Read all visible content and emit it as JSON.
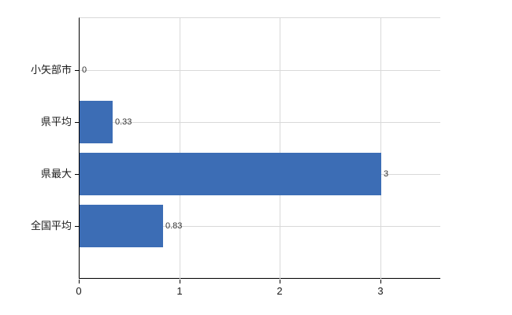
{
  "chart_data": {
    "type": "bar",
    "orientation": "horizontal",
    "title": "",
    "xlabel": "",
    "ylabel": "",
    "categories": [
      "小矢部市",
      "県平均",
      "県最大",
      "全国平均"
    ],
    "values": [
      0,
      0.33,
      3,
      0.83
    ],
    "value_labels": [
      "0",
      "0.33",
      "3",
      "0.83"
    ],
    "xticks": [
      0,
      1,
      2,
      3
    ],
    "xtick_labels": [
      "0",
      "1",
      "2",
      "3"
    ],
    "xlim": [
      0,
      3.6
    ],
    "grid": true,
    "legend": false,
    "colors": {
      "bar": "#3c6db5",
      "gridline": "#d9d9d9",
      "plot_top_border": "#d9d9d9",
      "axis": "#000000",
      "tick_text": "#1a1a1a",
      "value_text": "#333333",
      "background": "#ffffff"
    }
  }
}
